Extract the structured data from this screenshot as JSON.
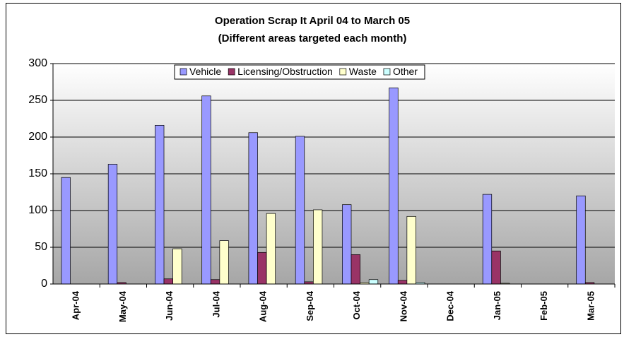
{
  "chart_data": {
    "type": "bar",
    "title": "Operation Scrap It April 04 to March 05",
    "subtitle": "(Different areas targeted each month)",
    "categories": [
      "Apr-04",
      "May-04",
      "Jun-04",
      "Jul-04",
      "Aug-04",
      "Sep-04",
      "Oct-04",
      "Nov-04",
      "Dec-04",
      "Jan-05",
      "Feb-05",
      "Mar-05"
    ],
    "series": [
      {
        "name": "Vehicle",
        "color": "#9999ff",
        "values": [
          145,
          163,
          216,
          256,
          206,
          201,
          108,
          267,
          0,
          122,
          0,
          120
        ]
      },
      {
        "name": "Licensing/Obstruction",
        "color": "#993366",
        "values": [
          0,
          2,
          7,
          6,
          43,
          3,
          40,
          5,
          0,
          45,
          0,
          2
        ]
      },
      {
        "name": "Waste",
        "color": "#ffffcc",
        "values": [
          0,
          0,
          48,
          59,
          96,
          101,
          2,
          92,
          0,
          1,
          0,
          0
        ]
      },
      {
        "name": "Other",
        "color": "#ccffff",
        "values": [
          0,
          0,
          0,
          0,
          0,
          0,
          6,
          2,
          0,
          0,
          0,
          0
        ]
      }
    ],
    "ylim": [
      0,
      300
    ],
    "yticks": [
      0,
      50,
      100,
      150,
      200,
      250,
      300
    ],
    "grid": true,
    "legend": "top"
  }
}
